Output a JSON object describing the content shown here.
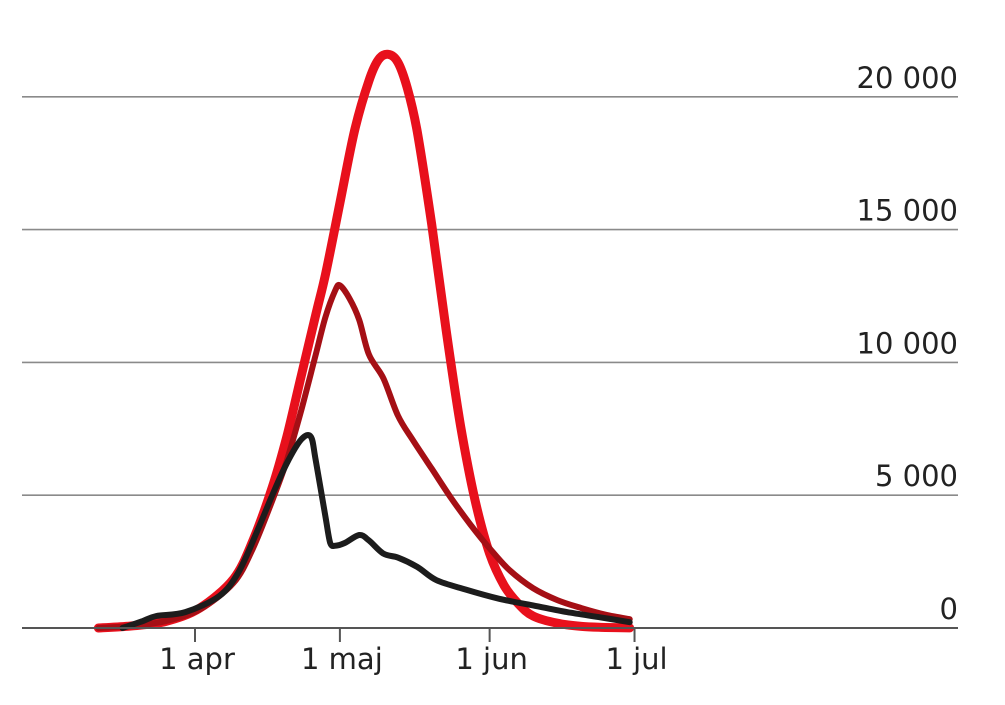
{
  "chart_data": {
    "type": "line",
    "title": "",
    "xlabel": "",
    "ylabel": "",
    "x_unit": "date",
    "xlim": [
      "2020-03-17",
      "2020-07-01"
    ],
    "ylim": [
      0,
      22000
    ],
    "grid": true,
    "y_ticks": [
      {
        "value": 0,
        "label": "0"
      },
      {
        "value": 5000,
        "label": "5 000"
      },
      {
        "value": 10000,
        "label": "10 000"
      },
      {
        "value": 15000,
        "label": "15 000"
      },
      {
        "value": 20000,
        "label": "20 000"
      }
    ],
    "x_ticks": [
      {
        "value": "2020-04-01",
        "label": "1 apr"
      },
      {
        "value": "2020-05-01",
        "label": "1 maj"
      },
      {
        "value": "2020-06-01",
        "label": "1 jun"
      },
      {
        "value": "2020-07-01",
        "label": "1 jul"
      }
    ],
    "series": [
      {
        "color": "#e8101c",
        "x": [
          "2020-03-12",
          "2020-03-19",
          "2020-03-26",
          "2020-04-02",
          "2020-04-09",
          "2020-04-13",
          "2020-04-17",
          "2020-04-20",
          "2020-04-23",
          "2020-04-26",
          "2020-04-28",
          "2020-05-01",
          "2020-05-04",
          "2020-05-07",
          "2020-05-09",
          "2020-05-11",
          "2020-05-13",
          "2020-05-15",
          "2020-05-17",
          "2020-05-20",
          "2020-05-23",
          "2020-05-26",
          "2020-05-29",
          "2020-06-01",
          "2020-06-04",
          "2020-06-07",
          "2020-06-10",
          "2020-06-15",
          "2020-06-20",
          "2020-06-25",
          "2020-06-30"
        ],
        "values": [
          0,
          80,
          250,
          750,
          1850,
          3300,
          5300,
          7200,
          9500,
          11800,
          13300,
          16000,
          18700,
          20600,
          21400,
          21600,
          21300,
          20300,
          18700,
          15200,
          11200,
          7600,
          4800,
          2800,
          1600,
          900,
          450,
          180,
          60,
          20,
          5
        ]
      },
      {
        "color": "#a50f15",
        "x": [
          "2020-03-12",
          "2020-03-19",
          "2020-03-26",
          "2020-04-02",
          "2020-04-09",
          "2020-04-13",
          "2020-04-17",
          "2020-04-20",
          "2020-04-23",
          "2020-04-26",
          "2020-04-28",
          "2020-04-30",
          "2020-05-01",
          "2020-05-03",
          "2020-05-05",
          "2020-05-07",
          "2020-05-10",
          "2020-05-13",
          "2020-05-16",
          "2020-05-20",
          "2020-05-24",
          "2020-05-28",
          "2020-06-01",
          "2020-06-05",
          "2020-06-10",
          "2020-06-15",
          "2020-06-20",
          "2020-06-25",
          "2020-06-30"
        ],
        "values": [
          0,
          80,
          260,
          700,
          1700,
          3000,
          4800,
          6300,
          8200,
          10300,
          11700,
          12700,
          12900,
          12400,
          11600,
          10300,
          9400,
          8000,
          7100,
          6000,
          4900,
          3900,
          3000,
          2200,
          1500,
          1050,
          750,
          500,
          330
        ]
      },
      {
        "color": "#1c1c1c",
        "x": [
          "2020-03-17",
          "2020-03-21",
          "2020-03-24",
          "2020-03-30",
          "2020-04-06",
          "2020-04-10",
          "2020-04-14",
          "2020-04-17",
          "2020-04-20",
          "2020-04-23",
          "2020-04-25",
          "2020-04-26",
          "2020-04-28",
          "2020-04-29",
          "2020-04-30",
          "2020-05-02",
          "2020-05-05",
          "2020-05-07",
          "2020-05-10",
          "2020-05-13",
          "2020-05-17",
          "2020-05-21",
          "2020-05-27",
          "2020-06-03",
          "2020-06-10",
          "2020-06-17",
          "2020-06-24",
          "2020-06-30"
        ],
        "values": [
          0,
          250,
          450,
          600,
          1200,
          2100,
          3700,
          5000,
          6200,
          7100,
          7200,
          6300,
          4200,
          3200,
          3100,
          3200,
          3500,
          3300,
          2800,
          2650,
          2300,
          1800,
          1450,
          1100,
          850,
          600,
          400,
          220
        ]
      }
    ]
  }
}
